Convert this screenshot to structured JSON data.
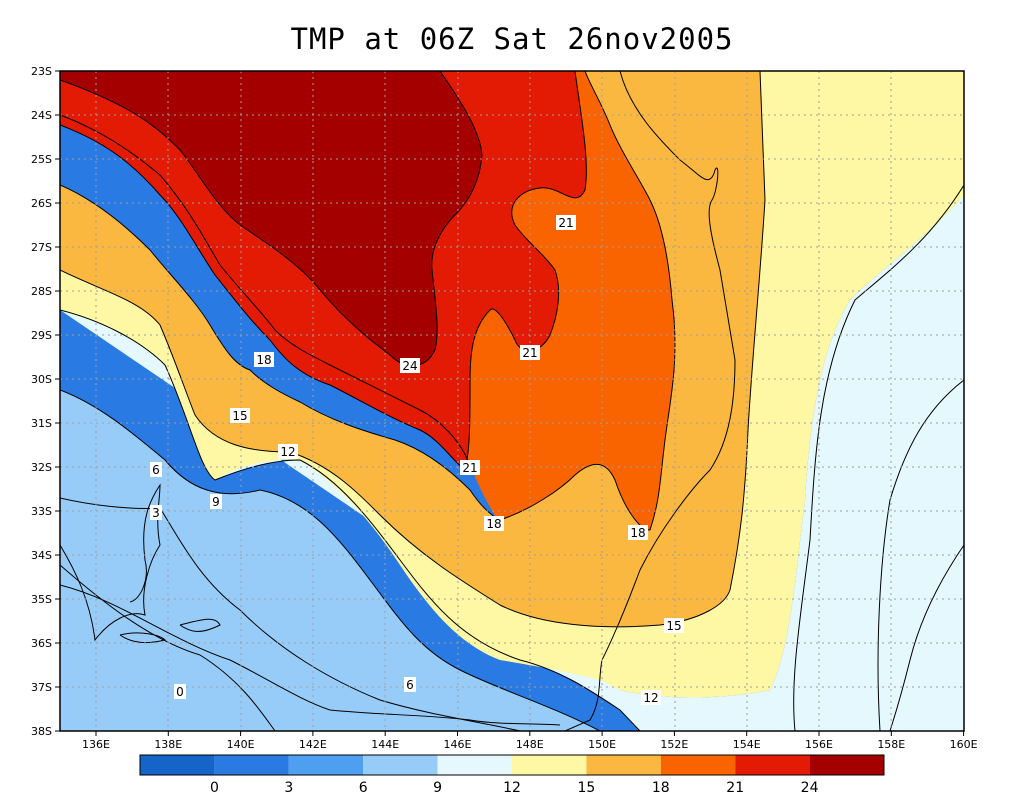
{
  "title": "TMP at 06Z Sat 26nov2005",
  "chart_data": {
    "type": "filled contour map",
    "variable": "TMP",
    "lon_range": [
      "135E",
      "160E"
    ],
    "lat_range": [
      "23S",
      "38S"
    ],
    "grid": true,
    "lat_ticks": [
      "23S",
      "24S",
      "25S",
      "26S",
      "27S",
      "28S",
      "29S",
      "30S",
      "31S",
      "32S",
      "33S",
      "34S",
      "35S",
      "36S",
      "37S",
      "38S"
    ],
    "lon_ticks": [
      "136E",
      "138E",
      "140E",
      "142E",
      "144E",
      "146E",
      "148E",
      "150E",
      "152E",
      "154E",
      "156E",
      "158E",
      "160E"
    ],
    "contour_levels": [
      0,
      3,
      6,
      9,
      12,
      15,
      18,
      21,
      24
    ],
    "contour_labels": [
      "21",
      "21",
      "24",
      "18",
      "15",
      "12",
      "6",
      "9",
      "3",
      "21",
      "18",
      "18",
      "15",
      "6",
      "12",
      "0"
    ],
    "colorbar": {
      "colors": [
        "#1565c8",
        "#2a7ae4",
        "#4f9ff0",
        "#98ccf8",
        "#e4f8fd",
        "#fef8a4",
        "#fbb840",
        "#fa6400",
        "#e31a04",
        "#a50000"
      ],
      "tick_labels": [
        "0",
        "3",
        "6",
        "9",
        "12",
        "15",
        "18",
        "21",
        "24"
      ]
    }
  }
}
